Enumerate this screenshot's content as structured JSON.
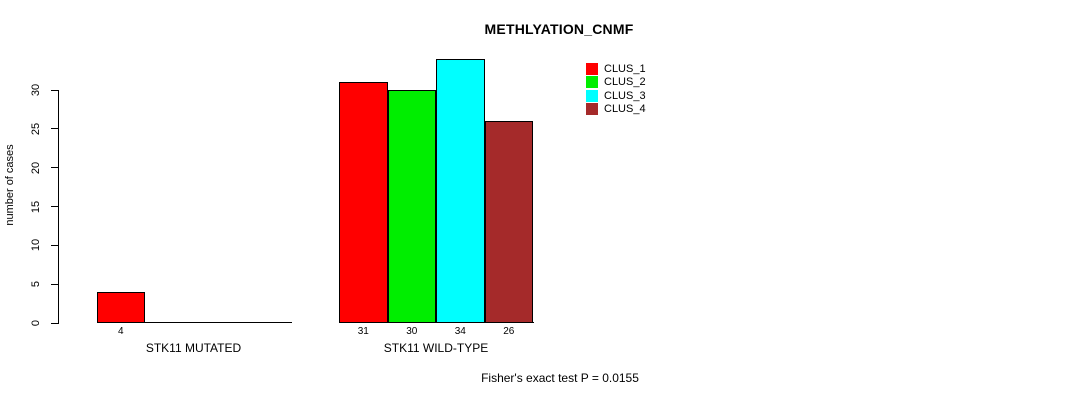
{
  "chart_data": {
    "type": "bar",
    "title": "METHLYATION_CNMF",
    "ylabel": "number of cases",
    "xlabel": "",
    "categories": [
      "STK11 MUTATED",
      "STK11 WILD-TYPE"
    ],
    "series": [
      {
        "name": "CLUS_1",
        "color": "#ff0000",
        "values": [
          4,
          31
        ]
      },
      {
        "name": "CLUS_2",
        "color": "#00ee00",
        "values": [
          0,
          30
        ]
      },
      {
        "name": "CLUS_3",
        "color": "#00ffff",
        "values": [
          0,
          34
        ]
      },
      {
        "name": "CLUS_4",
        "color": "#a52a2a",
        "values": [
          0,
          26
        ]
      }
    ],
    "yticks": [
      0,
      5,
      10,
      15,
      20,
      25,
      30
    ],
    "ylim": [
      0,
      34
    ],
    "grid": false,
    "legend_position": "topright",
    "bar_value_labels_visible": true,
    "annotation": "Fisher's exact test P = 0.0155",
    "axis_color": "#000000",
    "bar_border_color": "#000000"
  }
}
